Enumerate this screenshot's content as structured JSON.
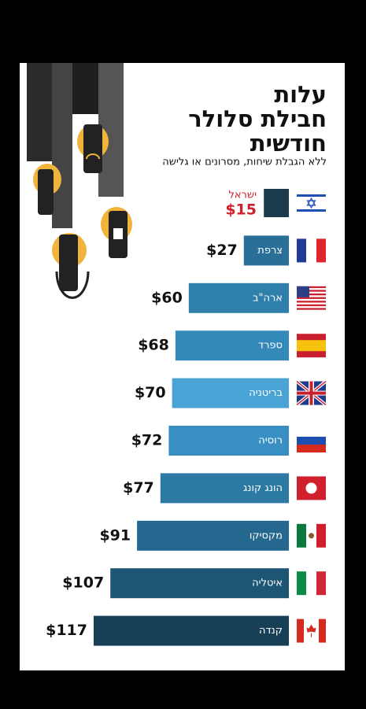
{
  "chart_data": {
    "type": "bar",
    "title": [
      "עלות",
      "חבילת סלולר",
      "חודשית"
    ],
    "subtitle": "ללא הגבלת שיחות, מסרונים או גלישה",
    "categories": [
      "ישראל",
      "צרפת",
      "ארה\"ב",
      "ספרד",
      "בריטניה",
      "רוסיה",
      "הונג קונג",
      "מקסיקו",
      "איטליה",
      "קנדה"
    ],
    "values": [
      15,
      27,
      60,
      68,
      70,
      72,
      77,
      91,
      107,
      117
    ],
    "value_labels": [
      "$15",
      "$27",
      "$60",
      "$68",
      "$70",
      "$72",
      "$77",
      "$91",
      "$107",
      "$117"
    ],
    "colors": [
      "#1b3a4b",
      "#2a6f97",
      "#2f7fab",
      "#3389b9",
      "#4aa3d5",
      "#3a8fc2",
      "#2c79a4",
      "#25688f",
      "#1d5674",
      "#173f55"
    ],
    "highlight_color": "#d0202e"
  }
}
